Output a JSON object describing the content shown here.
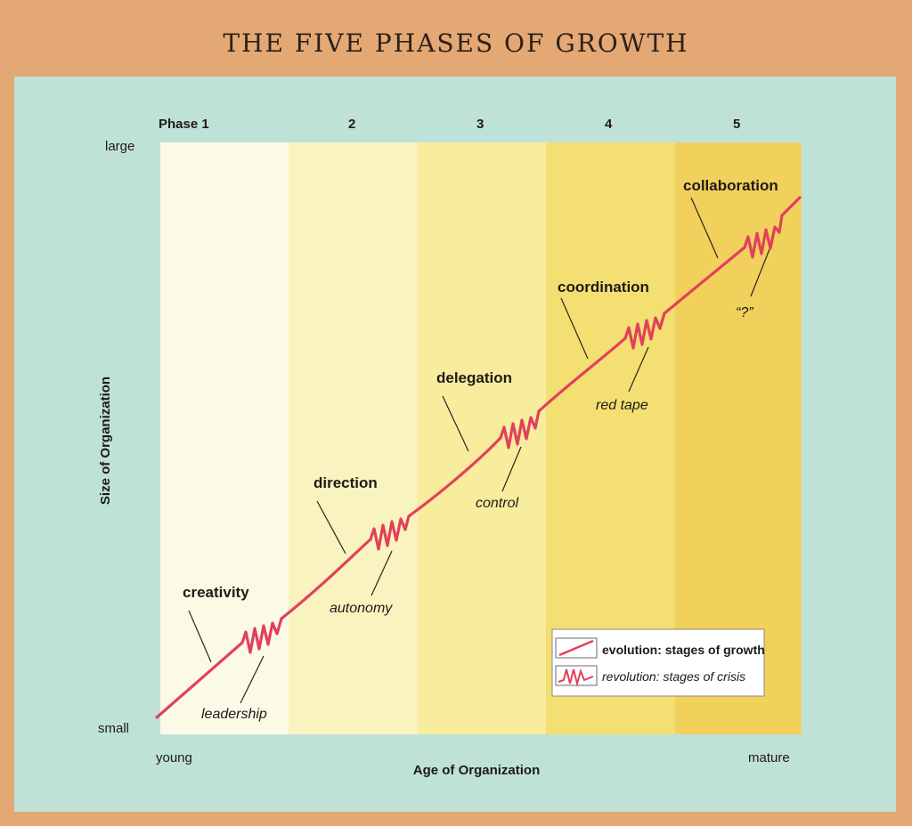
{
  "title": "THE FIVE PHASES OF GROWTH",
  "phases": [
    "Phase 1",
    "2",
    "3",
    "4",
    "5"
  ],
  "axis": {
    "y_label": "Size of Organization",
    "y_top": "large",
    "y_bottom": "small",
    "x_label": "Age of Organization",
    "x_left": "young",
    "x_right": "mature"
  },
  "evolution_stages": [
    "creativity",
    "direction",
    "delegation",
    "coordination",
    "collaboration"
  ],
  "revolution_stages": [
    "leadership",
    "autonomy",
    "control",
    "red tape",
    "“?”"
  ],
  "legend": {
    "evolution": "evolution: stages of growth",
    "revolution": "revolution: stages of crisis"
  },
  "colors": {
    "curve": "#e2405c",
    "band1": "#fbfae6",
    "band2": "#f9f3bf",
    "band3": "#f8ec9c",
    "band4": "#f4de6f",
    "band5": "#f1d05a"
  }
}
